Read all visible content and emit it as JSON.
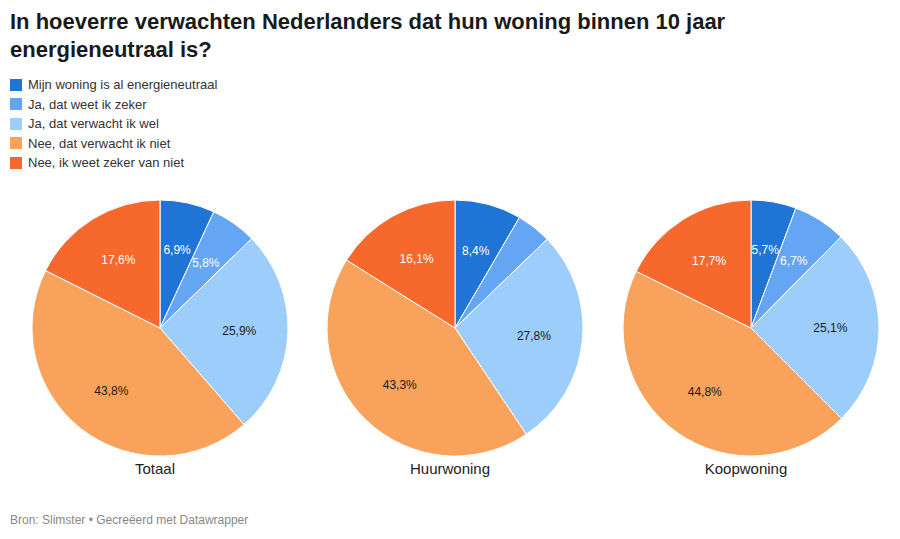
{
  "chart_data": {
    "type": "pie",
    "title": "In hoeverre verwachten Nederlanders dat hun woning binnen 10 jaar energieneutraal is?",
    "categories": [
      "Mijn woning is al energieneutraal",
      "Ja, dat weet ik zeker",
      "Ja, dat verwacht ik wel",
      "Nee, dat verwacht ik niet",
      "Nee, ik weet zeker van niet"
    ],
    "colors": [
      "#1f74d6",
      "#64a6f4",
      "#9dcdfb",
      "#f9a25c",
      "#f6682b"
    ],
    "series": [
      {
        "name": "Totaal",
        "values": [
          6.9,
          5.8,
          25.9,
          43.8,
          17.6
        ],
        "value_labels": [
          "6,9%",
          "5,8%",
          "25,9%",
          "43,8%",
          "17,6%"
        ]
      },
      {
        "name": "Huurwoning",
        "values": [
          8.4,
          4.4,
          27.8,
          43.3,
          16.1
        ],
        "value_labels": [
          "8,4%",
          null,
          "27,8%",
          "43,3%",
          "16,1%"
        ]
      },
      {
        "name": "Koopwoning",
        "values": [
          5.7,
          6.7,
          25.1,
          44.8,
          17.7
        ],
        "value_labels": [
          "5,7%",
          "6,7%",
          "25,1%",
          "44,8%",
          "17,7%"
        ]
      }
    ],
    "data_labels": true,
    "source": "Bron: Slimster • Gecreëerd met Datawrapper"
  }
}
